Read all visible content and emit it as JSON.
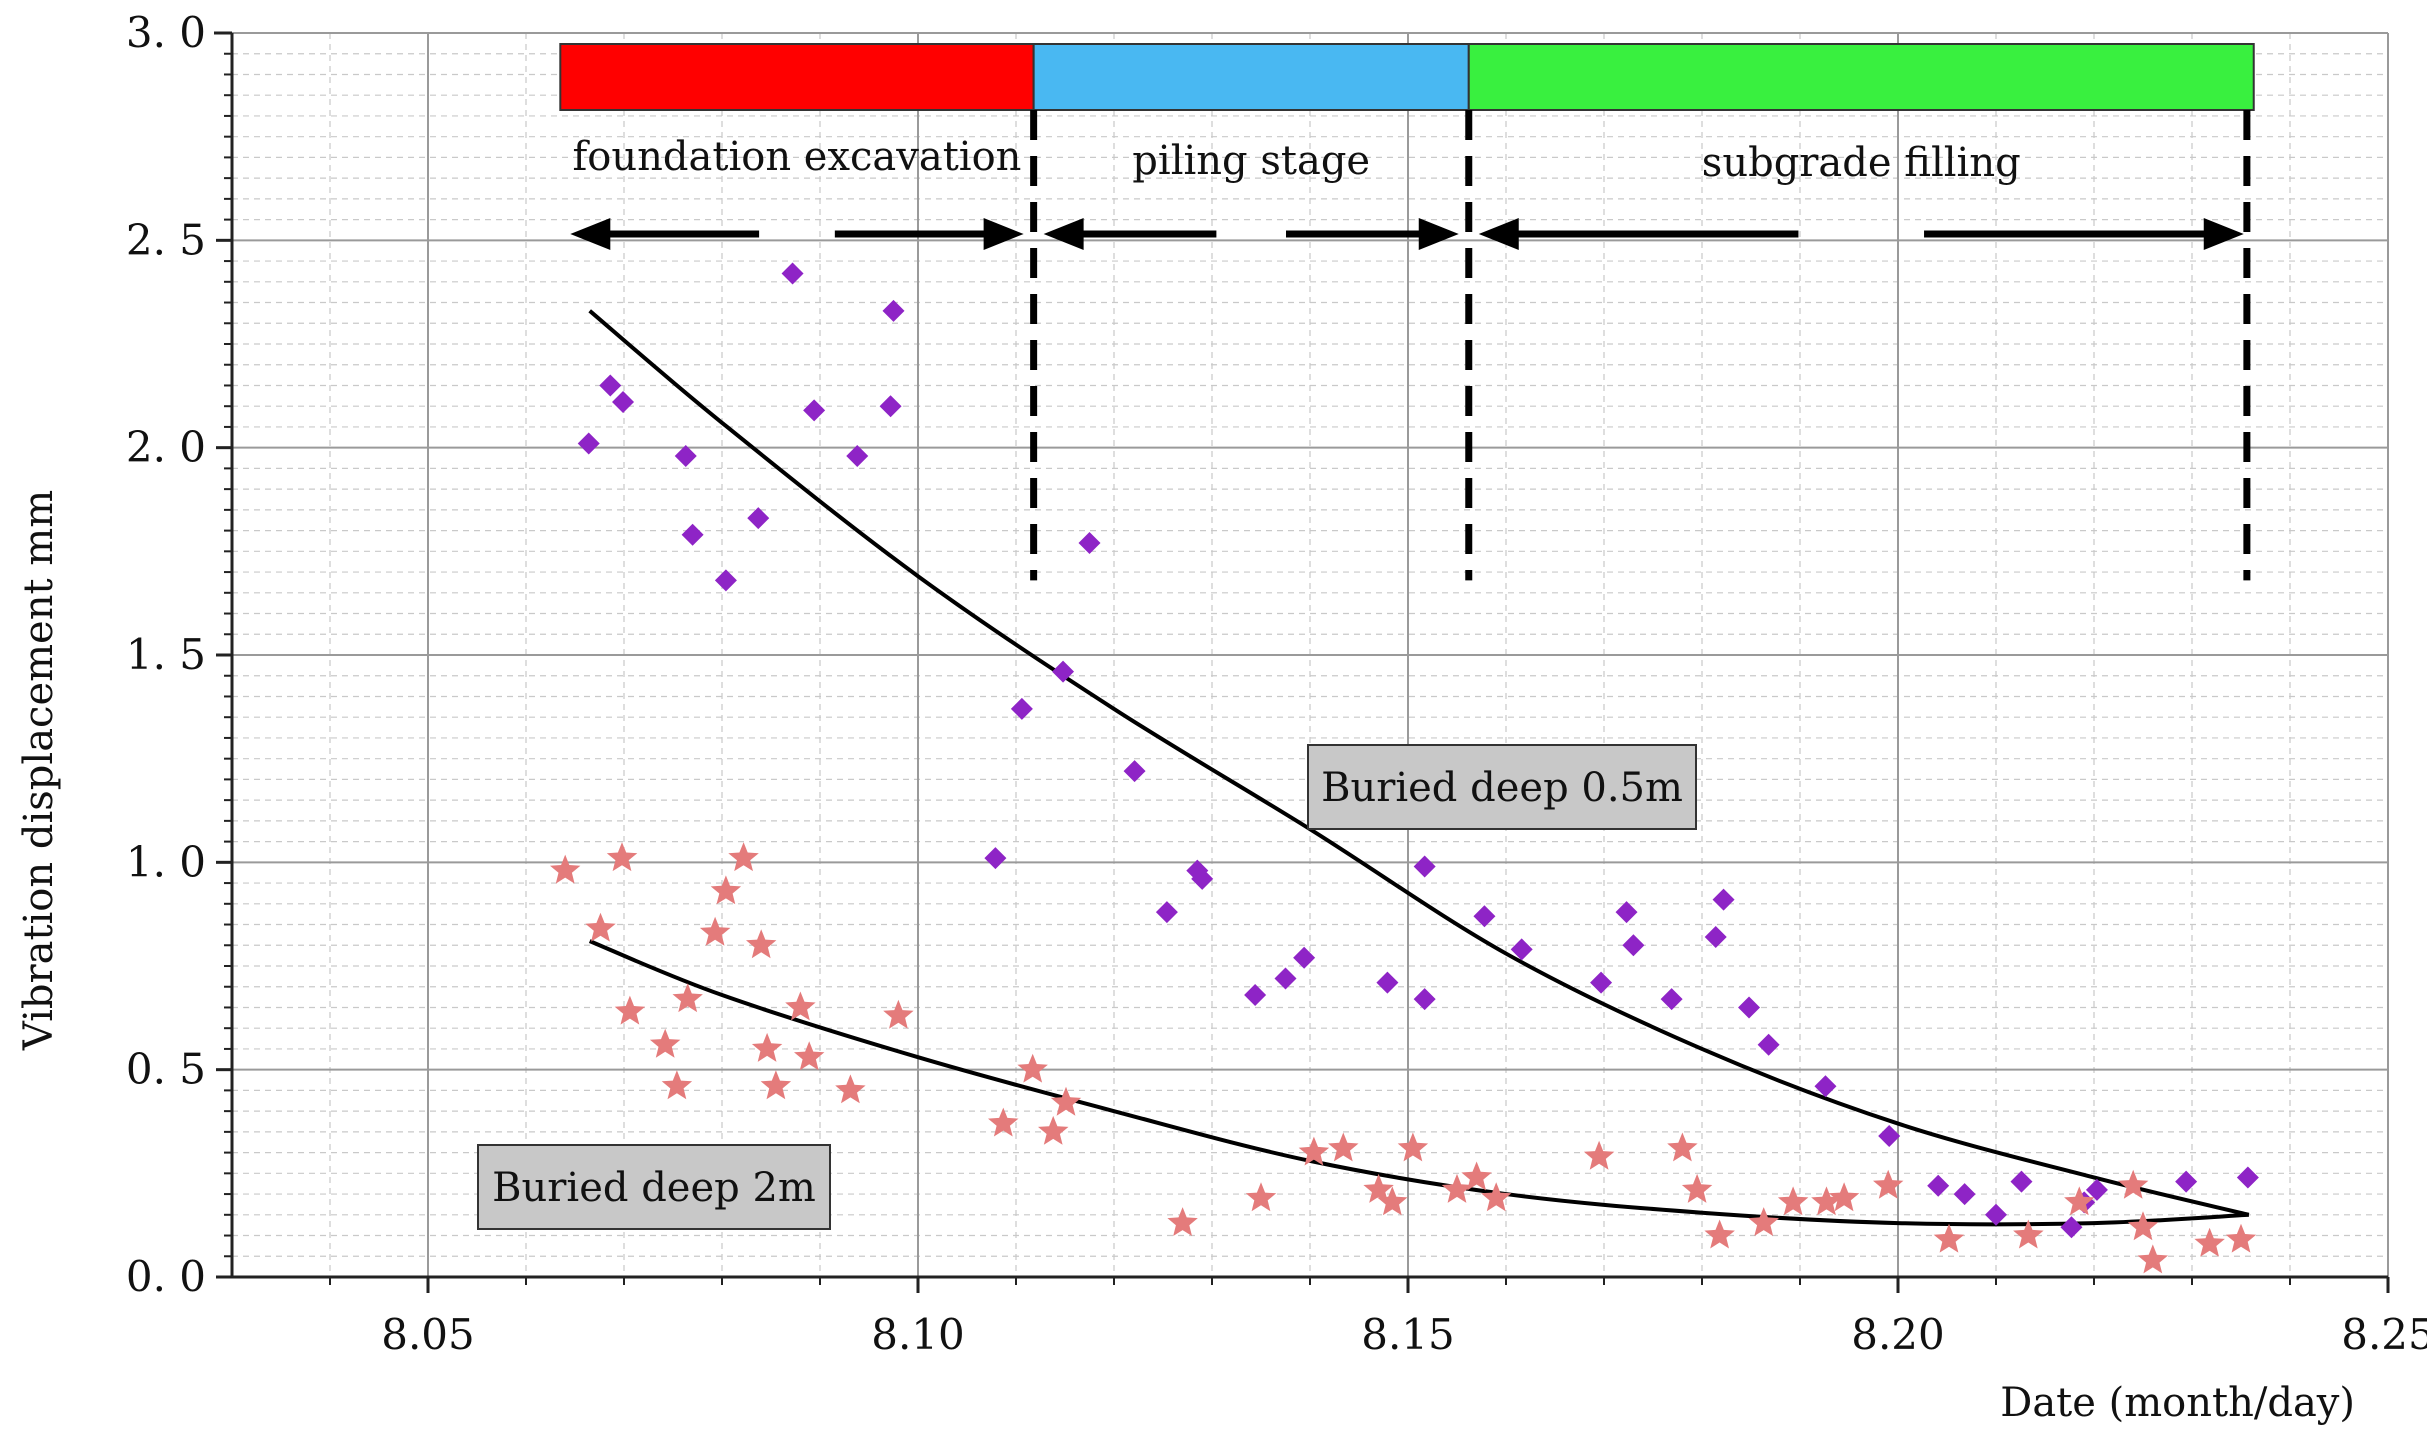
{
  "chart_data": {
    "type": "scatter",
    "title": "",
    "xlabel": "Date (month/day)",
    "ylabel": "Vibration displacement mm",
    "xlim": [
      8.03,
      8.25
    ],
    "ylim": [
      0,
      3.0
    ],
    "xticks": [
      {
        "value": 8.05,
        "label": "8.05"
      },
      {
        "value": 8.1,
        "label": "8.10"
      },
      {
        "value": 8.15,
        "label": "8.15"
      },
      {
        "value": 8.2,
        "label": "8.20"
      },
      {
        "value": 8.25,
        "label": "8.25"
      }
    ],
    "yticks": [
      {
        "value": 0.0,
        "label": "0. 0"
      },
      {
        "value": 0.5,
        "label": "0. 5"
      },
      {
        "value": 1.0,
        "label": "1. 0"
      },
      {
        "value": 1.5,
        "label": "1. 5"
      },
      {
        "value": 2.0,
        "label": "2. 0"
      },
      {
        "value": 2.5,
        "label": "2. 5"
      },
      {
        "value": 3.0,
        "label": "3. 0"
      }
    ],
    "grid": true,
    "stages": [
      {
        "name": "foundation excavation",
        "start": 8.0635,
        "end": 8.1118,
        "color": "#ff0000"
      },
      {
        "name": "piling stage",
        "start": 8.1118,
        "end": 8.1562,
        "color": "#49b8f2"
      },
      {
        "name": "subgrade filling",
        "start": 8.1562,
        "end": 8.2363,
        "color": "#39f03f"
      }
    ],
    "stage_boundaries": [
      8.1118,
      8.1562,
      8.2356
    ],
    "colors": {
      "diamond": "#8e24c6",
      "star": "#e47b7b",
      "fit": "#000000"
    },
    "series": [
      {
        "name": "Buried deep 0.5m",
        "marker": "diamond",
        "points": [
          [
            8.0664,
            2.01
          ],
          [
            8.0686,
            2.15
          ],
          [
            8.0699,
            2.11
          ],
          [
            8.0763,
            1.98
          ],
          [
            8.077,
            1.79
          ],
          [
            8.0804,
            1.68
          ],
          [
            8.0837,
            1.83
          ],
          [
            8.0872,
            2.42
          ],
          [
            8.0894,
            2.09
          ],
          [
            8.0938,
            1.98
          ],
          [
            8.0972,
            2.1
          ],
          [
            8.0975,
            2.33
          ],
          [
            8.1079,
            1.01
          ],
          [
            8.1106,
            1.37
          ],
          [
            8.1148,
            1.46
          ],
          [
            8.1175,
            1.77
          ],
          [
            8.1221,
            1.22
          ],
          [
            8.1254,
            0.88
          ],
          [
            8.1285,
            0.98
          ],
          [
            8.129,
            0.96
          ],
          [
            8.1344,
            0.68
          ],
          [
            8.1375,
            0.72
          ],
          [
            8.1394,
            0.77
          ],
          [
            8.1479,
            0.71
          ],
          [
            8.1517,
            0.99
          ],
          [
            8.1517,
            0.67
          ],
          [
            8.1578,
            0.87
          ],
          [
            8.1616,
            0.79
          ],
          [
            8.1697,
            0.71
          ],
          [
            8.1723,
            0.88
          ],
          [
            8.173,
            0.8
          ],
          [
            8.1769,
            0.67
          ],
          [
            8.1814,
            0.82
          ],
          [
            8.1822,
            0.91
          ],
          [
            8.1848,
            0.65
          ],
          [
            8.1868,
            0.56
          ],
          [
            8.1926,
            0.46
          ],
          [
            8.1991,
            0.34
          ],
          [
            8.2041,
            0.22
          ],
          [
            8.2068,
            0.2
          ],
          [
            8.21,
            0.15
          ],
          [
            8.2126,
            0.23
          ],
          [
            8.2177,
            0.12
          ],
          [
            8.219,
            0.18
          ],
          [
            8.2203,
            0.21
          ],
          [
            8.2294,
            0.23
          ],
          [
            8.2357,
            0.24
          ]
        ],
        "fit": [
          [
            8.0665,
            2.33
          ],
          [
            8.08,
            2.06
          ],
          [
            8.1,
            1.69
          ],
          [
            8.12,
            1.37
          ],
          [
            8.14,
            1.08
          ],
          [
            8.16,
            0.78
          ],
          [
            8.18,
            0.55
          ],
          [
            8.2,
            0.37
          ],
          [
            8.22,
            0.24
          ],
          [
            8.2358,
            0.15
          ]
        ]
      },
      {
        "name": "Buried deep 2m",
        "marker": "star",
        "points": [
          [
            8.064,
            0.98
          ],
          [
            8.0676,
            0.84
          ],
          [
            8.0698,
            1.01
          ],
          [
            8.0706,
            0.64
          ],
          [
            8.0742,
            0.56
          ],
          [
            8.0754,
            0.46
          ],
          [
            8.0765,
            0.67
          ],
          [
            8.0793,
            0.83
          ],
          [
            8.0804,
            0.93
          ],
          [
            8.0822,
            1.01
          ],
          [
            8.084,
            0.8
          ],
          [
            8.0846,
            0.55
          ],
          [
            8.0855,
            0.46
          ],
          [
            8.088,
            0.65
          ],
          [
            8.0889,
            0.53
          ],
          [
            8.0931,
            0.45
          ],
          [
            8.098,
            0.63
          ],
          [
            8.1087,
            0.37
          ],
          [
            8.1117,
            0.5
          ],
          [
            8.1138,
            0.35
          ],
          [
            8.1151,
            0.42
          ],
          [
            8.127,
            0.13
          ],
          [
            8.135,
            0.19
          ],
          [
            8.1404,
            0.3
          ],
          [
            8.1434,
            0.31
          ],
          [
            8.147,
            0.21
          ],
          [
            8.1484,
            0.18
          ],
          [
            8.1505,
            0.31
          ],
          [
            8.155,
            0.21
          ],
          [
            8.157,
            0.24
          ],
          [
            8.159,
            0.19
          ],
          [
            8.1695,
            0.29
          ],
          [
            8.178,
            0.31
          ],
          [
            8.1795,
            0.21
          ],
          [
            8.1818,
            0.1
          ],
          [
            8.1863,
            0.13
          ],
          [
            8.1893,
            0.18
          ],
          [
            8.1927,
            0.18
          ],
          [
            8.1945,
            0.19
          ],
          [
            8.199,
            0.22
          ],
          [
            8.2052,
            0.09
          ],
          [
            8.2133,
            0.1
          ],
          [
            8.2185,
            0.18
          ],
          [
            8.224,
            0.22
          ],
          [
            8.225,
            0.12
          ],
          [
            8.226,
            0.04
          ],
          [
            8.2318,
            0.08
          ],
          [
            8.235,
            0.09
          ]
        ],
        "fit": [
          [
            8.0665,
            0.81
          ],
          [
            8.08,
            0.68
          ],
          [
            8.1,
            0.53
          ],
          [
            8.12,
            0.4
          ],
          [
            8.14,
            0.28
          ],
          [
            8.16,
            0.2
          ],
          [
            8.18,
            0.155
          ],
          [
            8.2,
            0.13
          ],
          [
            8.22,
            0.13
          ],
          [
            8.2358,
            0.15
          ]
        ]
      }
    ],
    "annotations": [
      {
        "text": "Buried deep 0.5m",
        "series": "Buried deep 0.5m"
      },
      {
        "text": "Buried deep 2m",
        "series": "Buried deep 2m"
      }
    ]
  }
}
